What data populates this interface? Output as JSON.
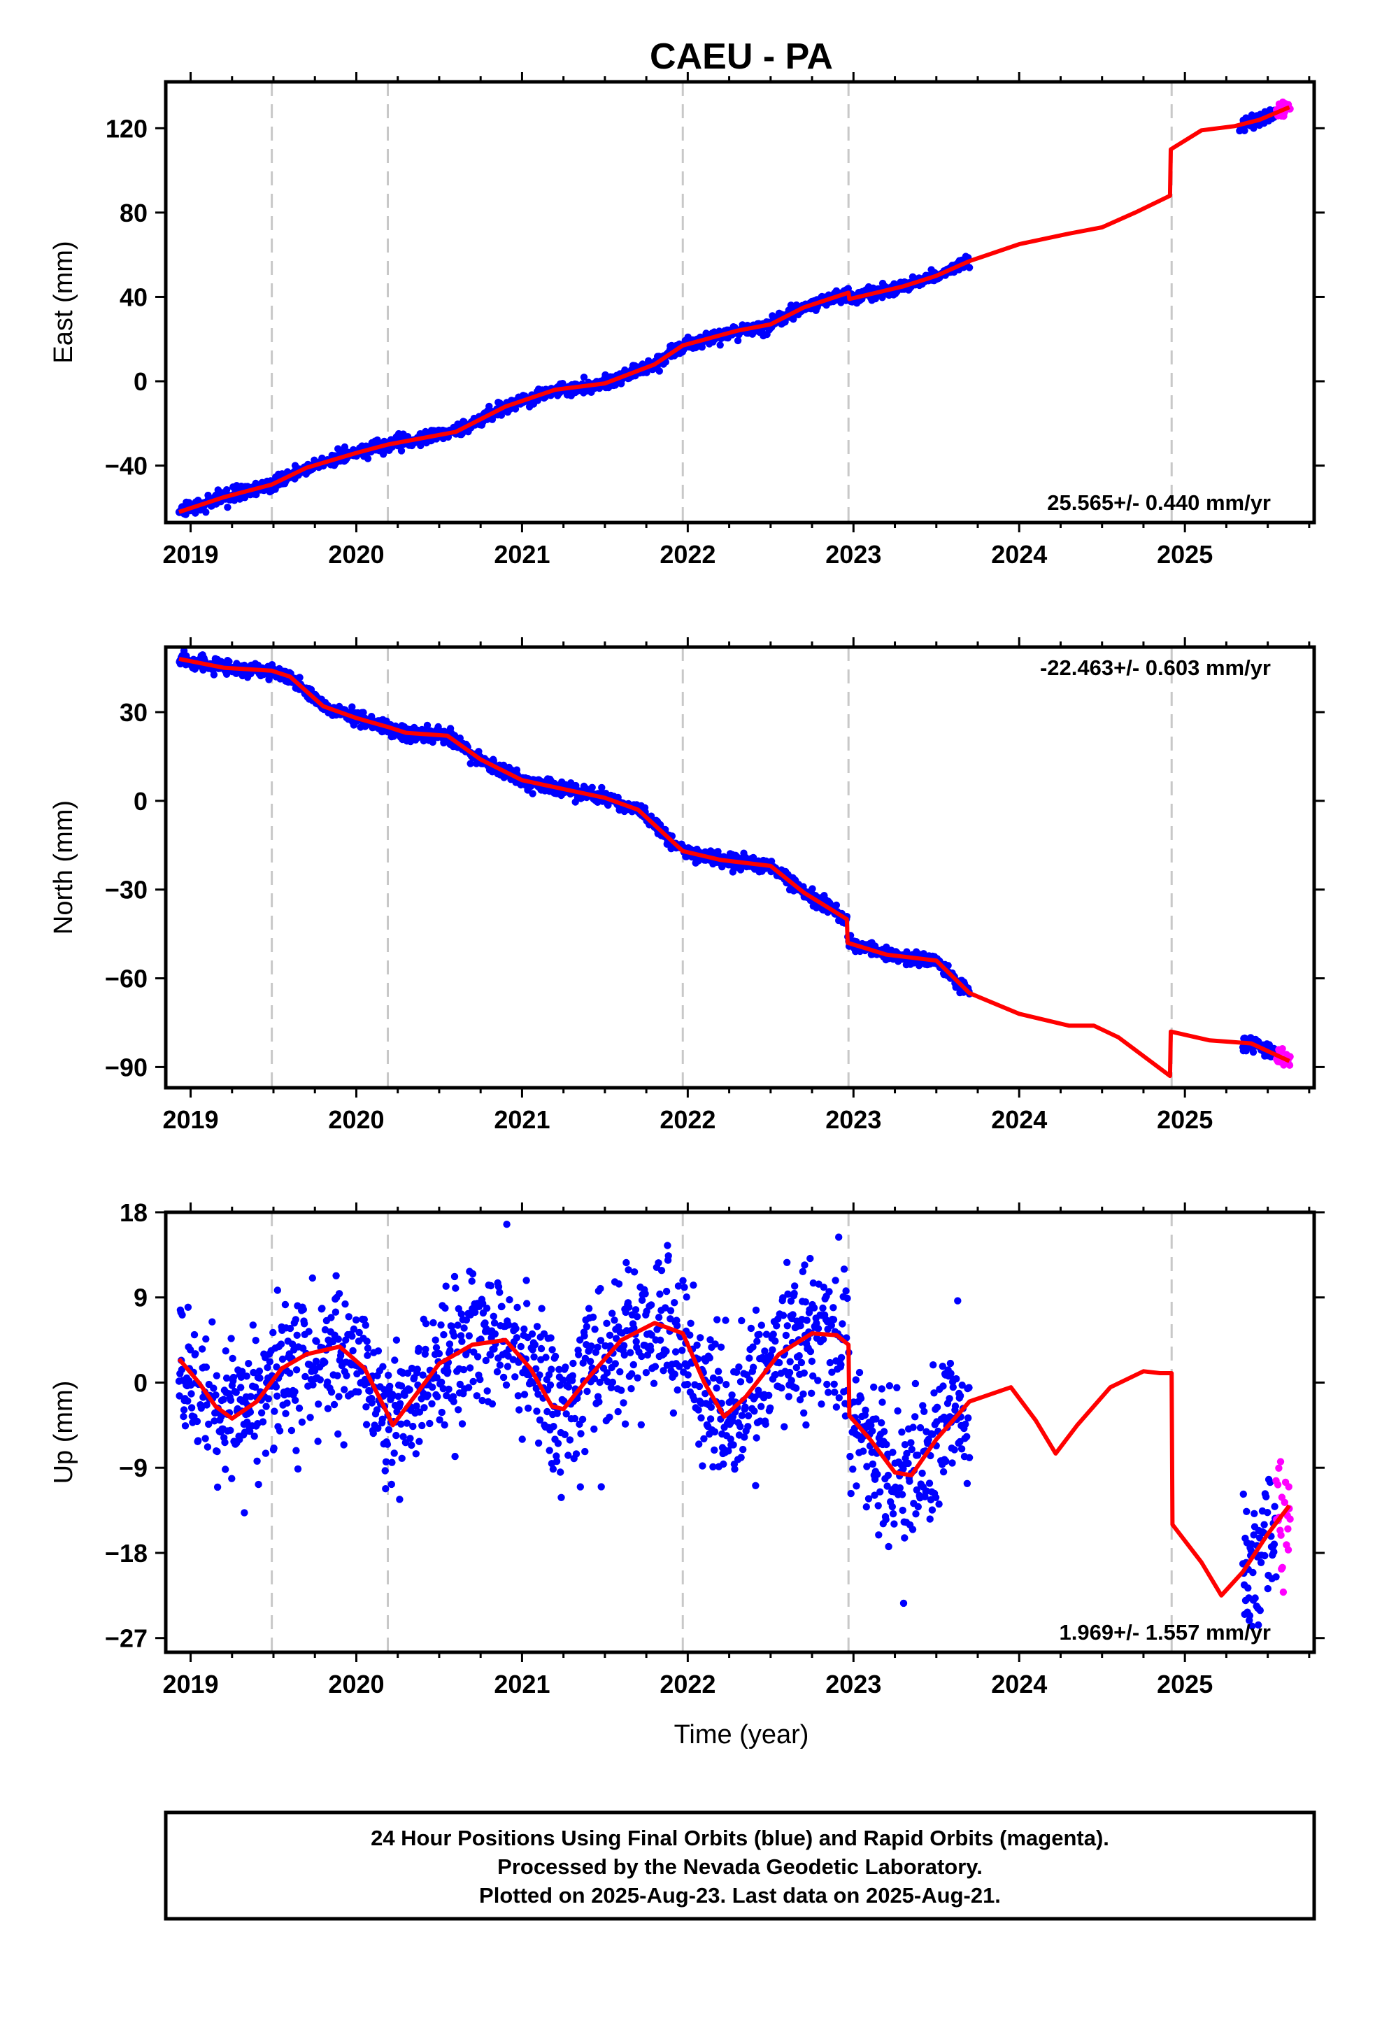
{
  "title": "CAEU - PA",
  "xlabel": "Time (year)",
  "footer": {
    "line1": "24 Hour Positions Using Final Orbits (blue) and Rapid Orbits (magenta).",
    "line2": "Processed by the Nevada Geodetic Laboratory.",
    "line3": "Plotted on 2025-Aug-23. Last data on 2025-Aug-21."
  },
  "colors": {
    "final": "#0000ff",
    "rapid": "#ff00ff",
    "model": "#ff0000",
    "event_line": "#c8c8c8"
  },
  "chart_data": [
    {
      "type": "scatter",
      "ylabel": "East (mm)",
      "rate_text": "25.565+/- 0.440 mm/yr",
      "rate_position": "bottom-right",
      "xlim": [
        2018.85,
        2025.78
      ],
      "ylim": [
        -67,
        142
      ],
      "xticks": [
        "2019",
        "2020",
        "2021",
        "2022",
        "2023",
        "2024",
        "2025"
      ],
      "yticks": [
        "120",
        "80",
        "40",
        "0",
        "-40"
      ],
      "event_lines": [
        2019.49,
        2020.19,
        2021.97,
        2022.97,
        2024.92
      ],
      "data_end": 2023.7,
      "rapid_start": 2025.55,
      "noise": 1.5,
      "obs_gaps": [
        [
          2023.7,
          2025.33
        ]
      ],
      "model": [
        [
          2018.93,
          -62
        ],
        [
          2019.2,
          -55
        ],
        [
          2019.49,
          -49
        ],
        [
          2019.7,
          -41
        ],
        [
          2020.0,
          -34
        ],
        [
          2020.19,
          -30
        ],
        [
          2020.6,
          -24
        ],
        [
          2020.9,
          -12
        ],
        [
          2021.2,
          -4
        ],
        [
          2021.5,
          -1
        ],
        [
          2021.8,
          8
        ],
        [
          2021.97,
          17
        ],
        [
          2022.3,
          24
        ],
        [
          2022.5,
          27
        ],
        [
          2022.7,
          35
        ],
        [
          2022.97,
          42
        ],
        [
          2022.975,
          39
        ],
        [
          2023.3,
          45
        ],
        [
          2023.5,
          50
        ],
        [
          2023.7,
          57
        ],
        [
          2024.0,
          65
        ],
        [
          2024.3,
          70
        ],
        [
          2024.5,
          73
        ],
        [
          2024.7,
          80
        ],
        [
          2024.91,
          88
        ],
        [
          2024.915,
          110
        ],
        [
          2025.1,
          119
        ],
        [
          2025.3,
          121
        ],
        [
          2025.45,
          124
        ],
        [
          2025.63,
          130
        ]
      ]
    },
    {
      "type": "scatter",
      "ylabel": "North (mm)",
      "rate_text": "-22.463+/- 0.603 mm/yr",
      "rate_position": "top-right",
      "xlim": [
        2018.85,
        2025.78
      ],
      "ylim": [
        -97,
        52
      ],
      "xticks": [
        "2019",
        "2020",
        "2021",
        "2022",
        "2023",
        "2024",
        "2025"
      ],
      "yticks": [
        "30",
        "0",
        "-30",
        "-60",
        "-90"
      ],
      "event_lines": [
        2019.49,
        2020.19,
        2021.97,
        2022.97,
        2024.92
      ],
      "data_end": 2023.7,
      "rapid_start": 2025.55,
      "noise": 1.2,
      "obs_gaps": [
        [
          2023.7,
          2025.35
        ]
      ],
      "model": [
        [
          2018.93,
          48
        ],
        [
          2019.2,
          45
        ],
        [
          2019.49,
          44
        ],
        [
          2019.6,
          42
        ],
        [
          2019.8,
          32
        ],
        [
          2020.0,
          28
        ],
        [
          2020.19,
          25
        ],
        [
          2020.3,
          23
        ],
        [
          2020.55,
          22
        ],
        [
          2020.75,
          14
        ],
        [
          2021.0,
          7
        ],
        [
          2021.25,
          4
        ],
        [
          2021.5,
          1
        ],
        [
          2021.7,
          -3
        ],
        [
          2021.97,
          -17
        ],
        [
          2022.2,
          -20
        ],
        [
          2022.5,
          -22
        ],
        [
          2022.7,
          -31
        ],
        [
          2022.96,
          -40
        ],
        [
          2022.965,
          -48
        ],
        [
          2023.2,
          -52
        ],
        [
          2023.5,
          -54
        ],
        [
          2023.7,
          -65
        ],
        [
          2024.0,
          -72
        ],
        [
          2024.3,
          -76
        ],
        [
          2024.45,
          -76
        ],
        [
          2024.6,
          -80
        ],
        [
          2024.91,
          -93
        ],
        [
          2024.915,
          -78
        ],
        [
          2025.15,
          -81
        ],
        [
          2025.4,
          -82
        ],
        [
          2025.63,
          -88
        ]
      ]
    },
    {
      "type": "scatter",
      "ylabel": "Up (mm)",
      "rate_text": "1.969+/- 1.557 mm/yr",
      "rate_position": "bottom-right",
      "xlim": [
        2018.85,
        2025.78
      ],
      "ylim": [
        -28.5,
        18
      ],
      "xticks": [
        "2019",
        "2020",
        "2021",
        "2022",
        "2023",
        "2024",
        "2025"
      ],
      "yticks": [
        "18",
        "9",
        "0",
        "-9",
        "-18",
        "-27"
      ],
      "event_lines": [
        2019.49,
        2020.19,
        2021.97,
        2022.97,
        2024.92
      ],
      "data_end": 2023.7,
      "rapid_start": 2025.55,
      "noise": 3.8,
      "obs_gaps": [
        [
          2023.7,
          2025.35
        ]
      ],
      "model": [
        [
          2018.93,
          2.5
        ],
        [
          2019.05,
          0
        ],
        [
          2019.15,
          -2.5
        ],
        [
          2019.25,
          -3.8
        ],
        [
          2019.4,
          -2
        ],
        [
          2019.55,
          1.5
        ],
        [
          2019.7,
          3.0
        ],
        [
          2019.9,
          3.8
        ],
        [
          2020.05,
          1.5
        ],
        [
          2020.18,
          -3
        ],
        [
          2020.22,
          -4.5
        ],
        [
          2020.35,
          -1.5
        ],
        [
          2020.5,
          2.0
        ],
        [
          2020.7,
          4.0
        ],
        [
          2020.9,
          4.5
        ],
        [
          2021.05,
          1.5
        ],
        [
          2021.18,
          -2.5
        ],
        [
          2021.25,
          -2.8
        ],
        [
          2021.4,
          0.5
        ],
        [
          2021.6,
          4.5
        ],
        [
          2021.8,
          6.3
        ],
        [
          2021.97,
          5.2
        ],
        [
          2022.1,
          0
        ],
        [
          2022.22,
          -3.6
        ],
        [
          2022.35,
          -1.5
        ],
        [
          2022.55,
          3.0
        ],
        [
          2022.75,
          5.2
        ],
        [
          2022.9,
          5.0
        ],
        [
          2022.97,
          4.0
        ],
        [
          2022.975,
          -3.5
        ],
        [
          2023.1,
          -6
        ],
        [
          2023.25,
          -9.5
        ],
        [
          2023.35,
          -9.8
        ],
        [
          2023.5,
          -6
        ],
        [
          2023.7,
          -2
        ],
        [
          2023.95,
          -0.5
        ],
        [
          2024.1,
          -4
        ],
        [
          2024.22,
          -7.5
        ],
        [
          2024.35,
          -4.5
        ],
        [
          2024.55,
          -0.5
        ],
        [
          2024.75,
          1.2
        ],
        [
          2024.85,
          1.0
        ],
        [
          2024.92,
          1.0
        ],
        [
          2024.925,
          -15
        ],
        [
          2025.1,
          -19
        ],
        [
          2025.22,
          -22.5
        ],
        [
          2025.35,
          -20
        ],
        [
          2025.5,
          -16
        ],
        [
          2025.63,
          -13
        ]
      ]
    }
  ]
}
